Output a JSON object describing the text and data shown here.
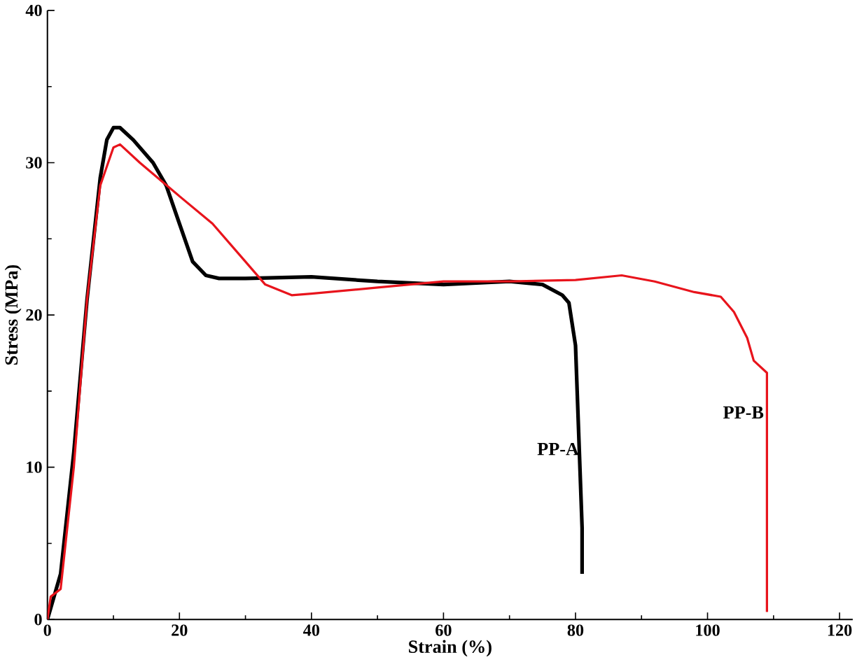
{
  "chart_data": {
    "type": "line",
    "xlabel": "Strain (%)",
    "ylabel": "Stress (MPa)",
    "xlim": [
      0,
      122
    ],
    "ylim": [
      0,
      40
    ],
    "xticks": [
      0,
      20,
      40,
      60,
      80,
      100,
      120
    ],
    "yticks": [
      0,
      10,
      20,
      30,
      40
    ],
    "grid": false,
    "legend": false,
    "marker": "none",
    "line_style": "solid",
    "series": [
      {
        "name": "PP-A",
        "color": "#000000",
        "x": [
          0,
          2,
          4,
          6,
          8,
          9,
          10,
          11,
          13,
          16,
          18,
          20,
          22,
          24,
          26,
          30,
          40,
          50,
          60,
          70,
          75,
          78,
          79,
          80,
          80.5,
          81,
          81
        ],
        "values": [
          0,
          3,
          11,
          21,
          29,
          31.5,
          32.3,
          32.3,
          31.5,
          30,
          28.5,
          26,
          23.5,
          22.6,
          22.4,
          22.4,
          22.5,
          22.2,
          22,
          22.2,
          22,
          21.3,
          20.8,
          18,
          12,
          6,
          3
        ]
      },
      {
        "name": "PP-B",
        "color": "#e8141c",
        "x": [
          0,
          0.5,
          2,
          4,
          6,
          8,
          10,
          11,
          14,
          20,
          25,
          30,
          33,
          37,
          40,
          50,
          60,
          70,
          80,
          87,
          92,
          98,
          102,
          104,
          106,
          107,
          109,
          109
        ],
        "values": [
          0,
          1.5,
          2,
          10,
          21,
          28.5,
          31,
          31.2,
          30,
          27.8,
          26,
          23.5,
          22,
          21.3,
          21.4,
          21.8,
          22.2,
          22.2,
          22.3,
          22.6,
          22.2,
          21.5,
          21.2,
          20.2,
          18.5,
          17,
          16.2,
          0.5
        ]
      }
    ]
  }
}
